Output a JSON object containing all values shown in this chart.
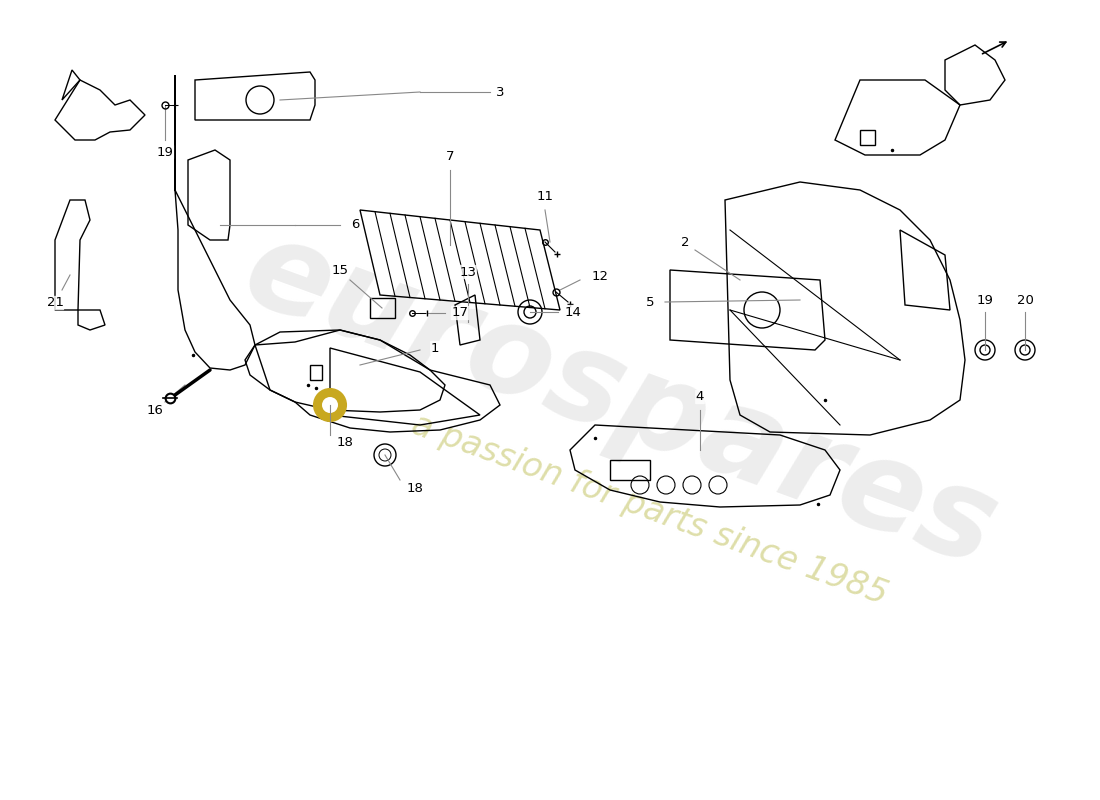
{
  "background_color": "#ffffff",
  "line_color": "#000000",
  "leader_color": "#888888",
  "watermark_color_1": "#cccccc",
  "watermark_color_2": "#d4d4a0",
  "lw": 1.0,
  "figw": 11.0,
  "figh": 8.0,
  "dpi": 100
}
